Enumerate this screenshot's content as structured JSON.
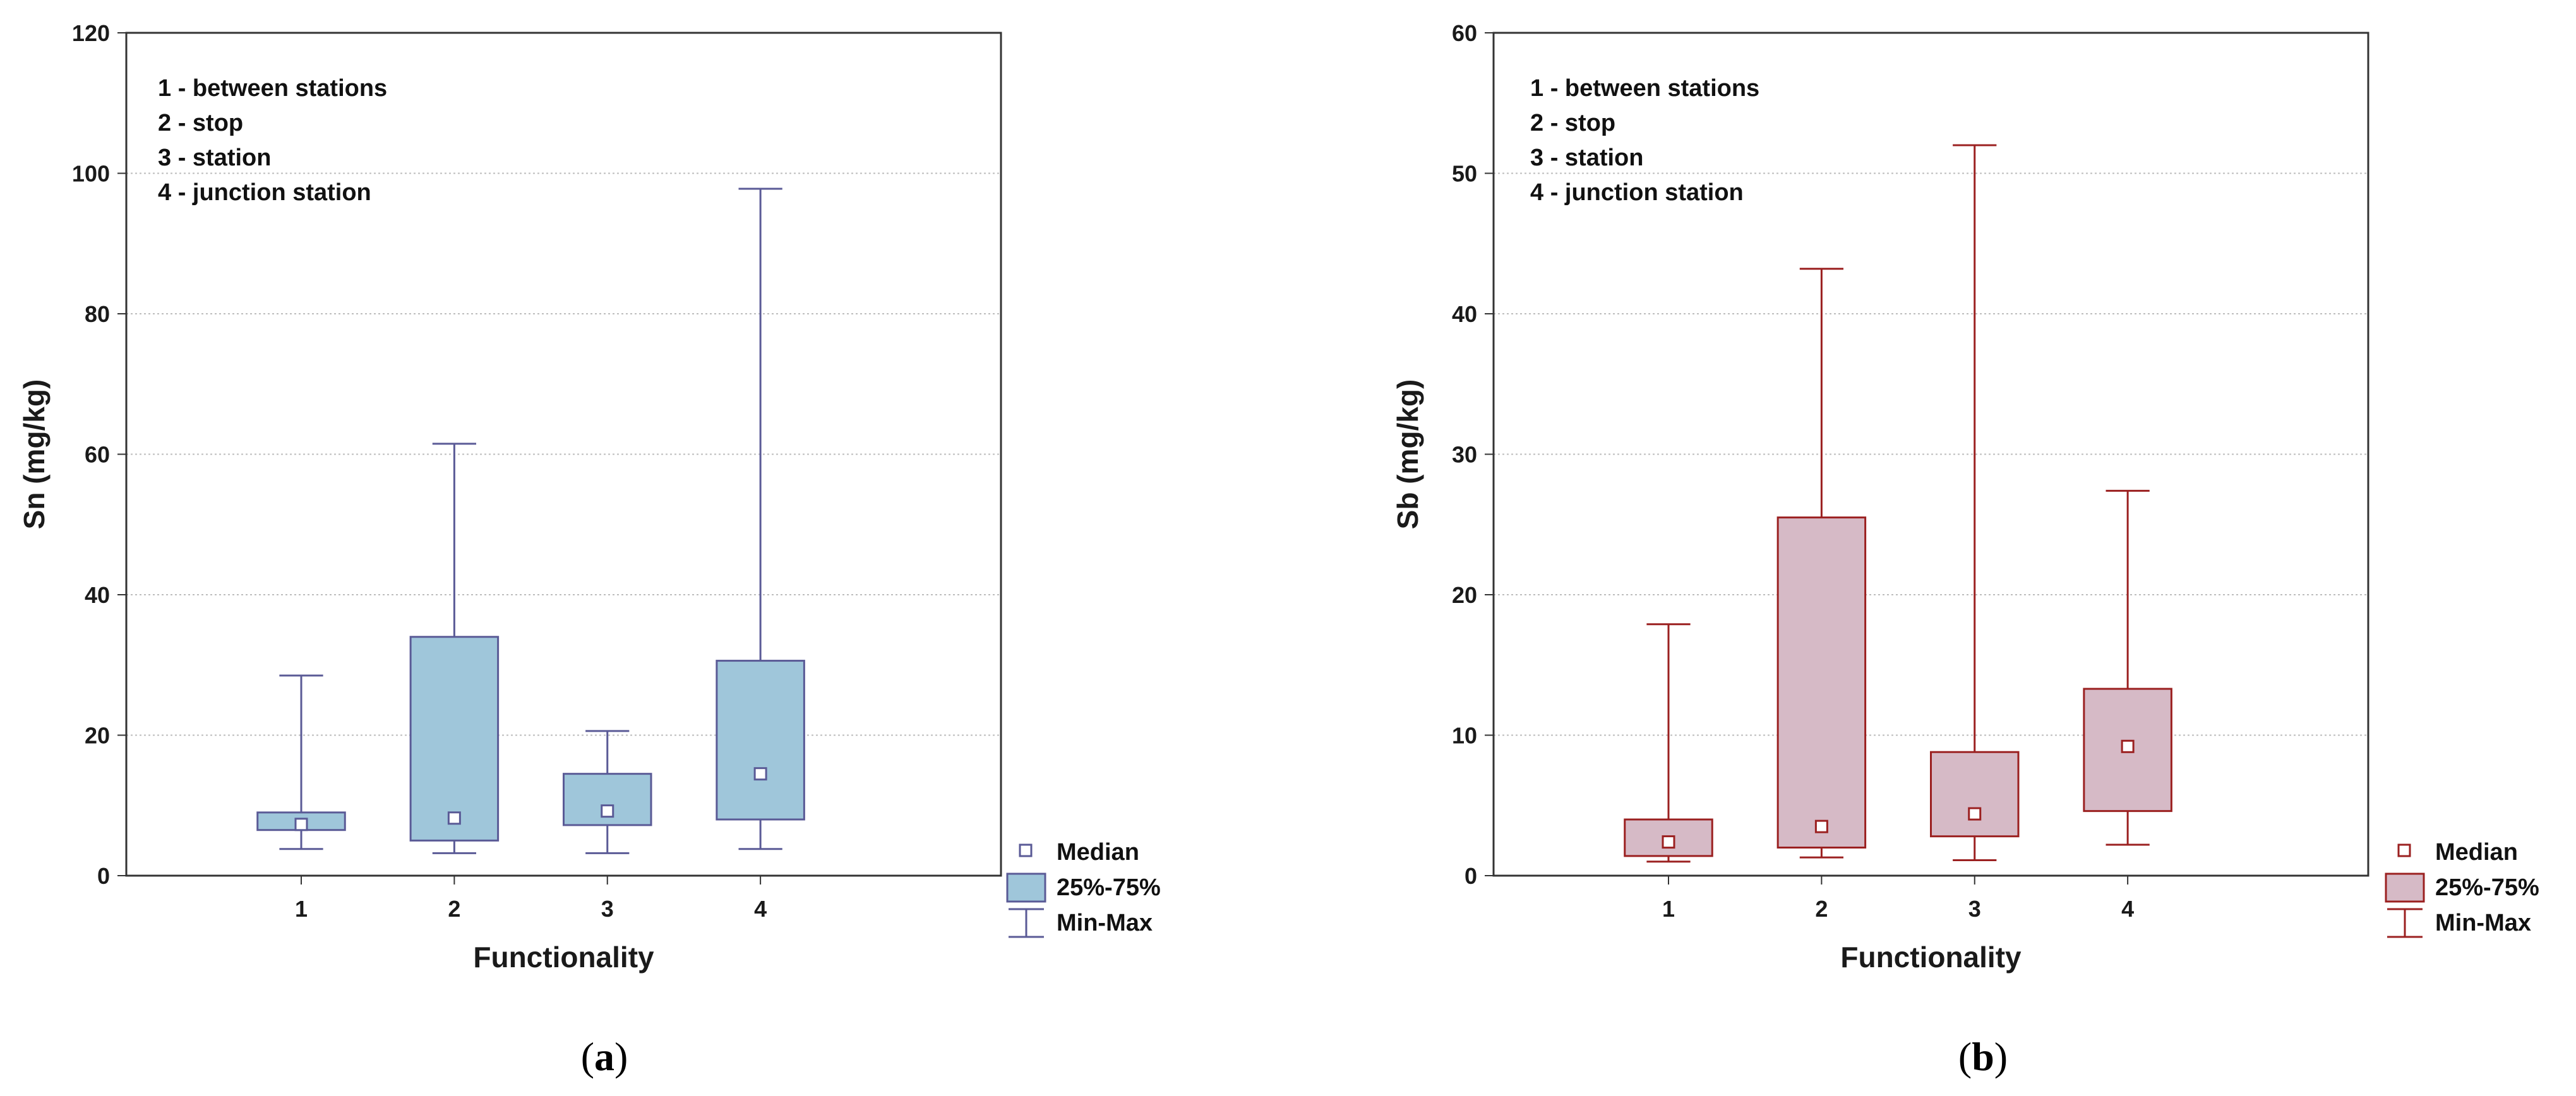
{
  "colors": {
    "frame": "#333333",
    "grid": "#bdbdbd",
    "panel_a_fill": "#9fc6da",
    "panel_a_stroke": "#5a5a96",
    "panel_b_fill": "#d6bac6",
    "panel_b_stroke": "#9b2020"
  },
  "chart_data": [
    {
      "type": "boxplot",
      "panel": "a",
      "caption_letter": "a",
      "xlabel": "Functionality",
      "ylabel": "Sn (mg/kg)",
      "ylim": [
        0,
        120
      ],
      "yticks": [
        "0",
        "20",
        "40",
        "60",
        "80",
        "100",
        "120"
      ],
      "grid": true,
      "categories": [
        "1",
        "2",
        "3",
        "4"
      ],
      "boxes": [
        {
          "category": "1",
          "min": 3.8,
          "q1": 6.5,
          "median": 7.3,
          "q3": 9.0,
          "max": 28.5
        },
        {
          "category": "2",
          "min": 3.2,
          "q1": 5.0,
          "median": 8.2,
          "q3": 34.0,
          "max": 61.5
        },
        {
          "category": "3",
          "min": 3.2,
          "q1": 7.2,
          "median": 9.2,
          "q3": 14.5,
          "max": 20.6
        },
        {
          "category": "4",
          "min": 3.8,
          "q1": 8.0,
          "median": 14.5,
          "q3": 30.6,
          "max": 97.8
        }
      ],
      "annotation_lines": [
        "1 - between stations",
        "2 - stop",
        "3 - station",
        "4 - junction station"
      ],
      "annotation_placement": "top-left",
      "legend": {
        "placement": "bottom-right-outside",
        "entries": [
          "Median",
          "25%-75%",
          "Min-Max"
        ]
      }
    },
    {
      "type": "boxplot",
      "panel": "b",
      "caption_letter": "b",
      "xlabel": "Functionality",
      "ylabel": "Sb (mg/kg)",
      "ylim": [
        0,
        60
      ],
      "yticks": [
        "0",
        "10",
        "20",
        "30",
        "40",
        "50",
        "60"
      ],
      "grid": true,
      "categories": [
        "1",
        "2",
        "3",
        "4"
      ],
      "boxes": [
        {
          "category": "1",
          "min": 1.0,
          "q1": 1.4,
          "median": 2.4,
          "q3": 4.0,
          "max": 17.9
        },
        {
          "category": "2",
          "min": 1.3,
          "q1": 2.0,
          "median": 3.5,
          "q3": 25.5,
          "max": 43.2
        },
        {
          "category": "3",
          "min": 1.1,
          "q1": 2.8,
          "median": 4.4,
          "q3": 8.8,
          "max": 52.0
        },
        {
          "category": "4",
          "min": 2.2,
          "q1": 4.6,
          "median": 9.2,
          "q3": 13.3,
          "max": 27.4
        }
      ],
      "annotation_lines": [
        "1 - between stations",
        "2 - stop",
        "3 - station",
        "4 - junction station"
      ],
      "annotation_placement": "top-left",
      "legend": {
        "placement": "bottom-right-outside",
        "entries": [
          "Median",
          "25%-75%",
          "Min-Max"
        ]
      }
    }
  ]
}
